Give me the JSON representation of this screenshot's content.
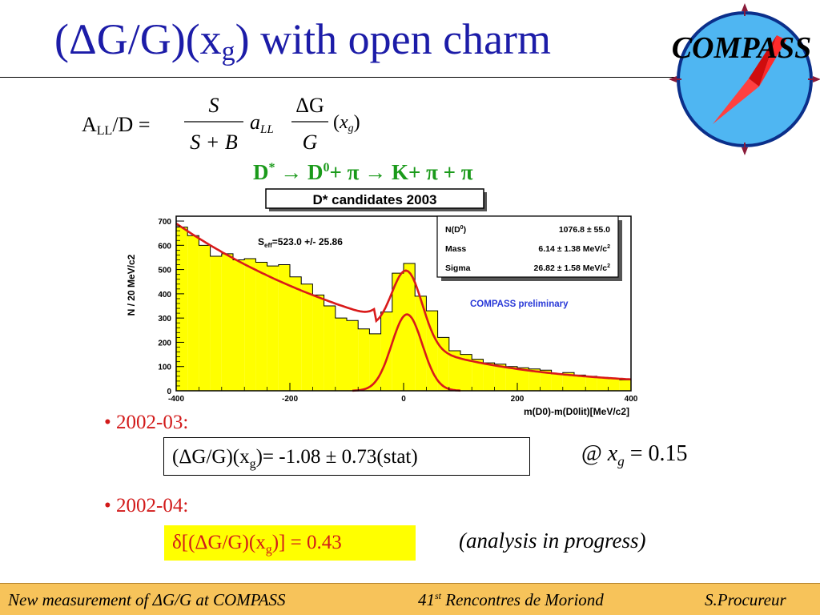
{
  "title": {
    "pre": "(ΔG/G)(x",
    "sub": "g",
    "post": ") with open charm"
  },
  "logo": {
    "text": "COMPASS"
  },
  "formula": {
    "lhs": "A",
    "lhs_sub": "LL",
    "lhs_rest": "/D =",
    "frac1_num": "S",
    "frac1_den": "S + B",
    "coef": "a",
    "coef_sub": "LL",
    "frac2_num": "ΔG",
    "frac2_den": "G",
    "arg_open": "(",
    "arg_x": "x",
    "arg_sub": "g",
    "arg_close": ")"
  },
  "decay": {
    "d": "D",
    "d_sup": "*",
    "arrow1": " → D",
    "d0_sup": "0",
    "rest1": "+ π ",
    "arrow2": "→",
    "rest2": " K+ π + π"
  },
  "chart_data": {
    "type": "bar",
    "title": "D* candidates 2003",
    "xlabel": "m(D0)-m(D0lit)[MeV/c2]",
    "ylabel": "N / 20 MeV/c2",
    "xlim": [
      -400,
      400
    ],
    "ylim": [
      0,
      720
    ],
    "xticks": [
      "-400",
      "-200",
      "0",
      "200",
      "400"
    ],
    "yticks": [
      "0",
      "100",
      "200",
      "300",
      "400",
      "500",
      "600",
      "700"
    ],
    "bin_width": 20,
    "bin_centers": [
      -390,
      -370,
      -350,
      -330,
      -310,
      -290,
      -270,
      -250,
      -230,
      -210,
      -190,
      -170,
      -150,
      -130,
      -110,
      -90,
      -70,
      -50,
      -30,
      -10,
      10,
      30,
      50,
      70,
      90,
      110,
      130,
      150,
      170,
      190,
      210,
      230,
      250,
      270,
      290,
      310,
      330,
      350,
      370,
      390
    ],
    "values": [
      675,
      640,
      600,
      555,
      565,
      540,
      545,
      530,
      515,
      520,
      470,
      440,
      395,
      350,
      300,
      290,
      255,
      235,
      325,
      485,
      525,
      390,
      330,
      220,
      165,
      150,
      130,
      115,
      110,
      100,
      95,
      90,
      85,
      70,
      75,
      65,
      60,
      55,
      50,
      45
    ],
    "fit_total": {
      "background": {
        "a": 330,
        "b": 410,
        "sigma_sq": 26000,
        "c": 10
      },
      "signal": {
        "amplitude": 315,
        "mean": 6,
        "sigma": 27
      }
    },
    "annotations": {
      "s_eff": {
        "label": "S",
        "sub": "eff",
        "value": "=523.0 +/- 25.86"
      },
      "fit_box": [
        {
          "name": "N(D",
          "name_sup": "0",
          "name_post": ")",
          "value": "1076.8 ± 55.0"
        },
        {
          "name": "Mass",
          "value": "6.14 ± 1.38 MeV/c",
          "value_sup": "2"
        },
        {
          "name": "Sigma",
          "value": "26.82 ± 1.58 MeV/c",
          "value_sup": "2"
        }
      ],
      "preliminary": "COMPASS preliminary"
    },
    "colors": {
      "fill": "#ffff00",
      "fit": "#d91a1a",
      "preliminary": "#2a3ad8"
    }
  },
  "bullets": [
    {
      "label": "2002-03:"
    },
    {
      "label": "2002-04:"
    }
  ],
  "result1": {
    "pre": "(ΔG/G)(x",
    "sub": "g",
    "post": ")= -1.08 ± 0.73(stat)"
  },
  "xg_condition": {
    "at": "@ ",
    "x": "x",
    "sub": "g",
    "rest": " = 0.15"
  },
  "result2": {
    "pre": "δ[(ΔG/G)(x",
    "sub": "g",
    "post": ")] = 0.43"
  },
  "note": "(analysis in progress)",
  "footer": {
    "left": "New measurement of ΔG/G at COMPASS",
    "center_num": "41",
    "center_sup": "st",
    "center_rest": " Rencontres de Moriond",
    "right": "S.Procureur"
  },
  "colors": {
    "title": "#1c1ca8",
    "bullet": "#d21a1a",
    "decay": "#1a9a1a",
    "highlight": "#ffff00",
    "footer": "#f7c35a"
  }
}
